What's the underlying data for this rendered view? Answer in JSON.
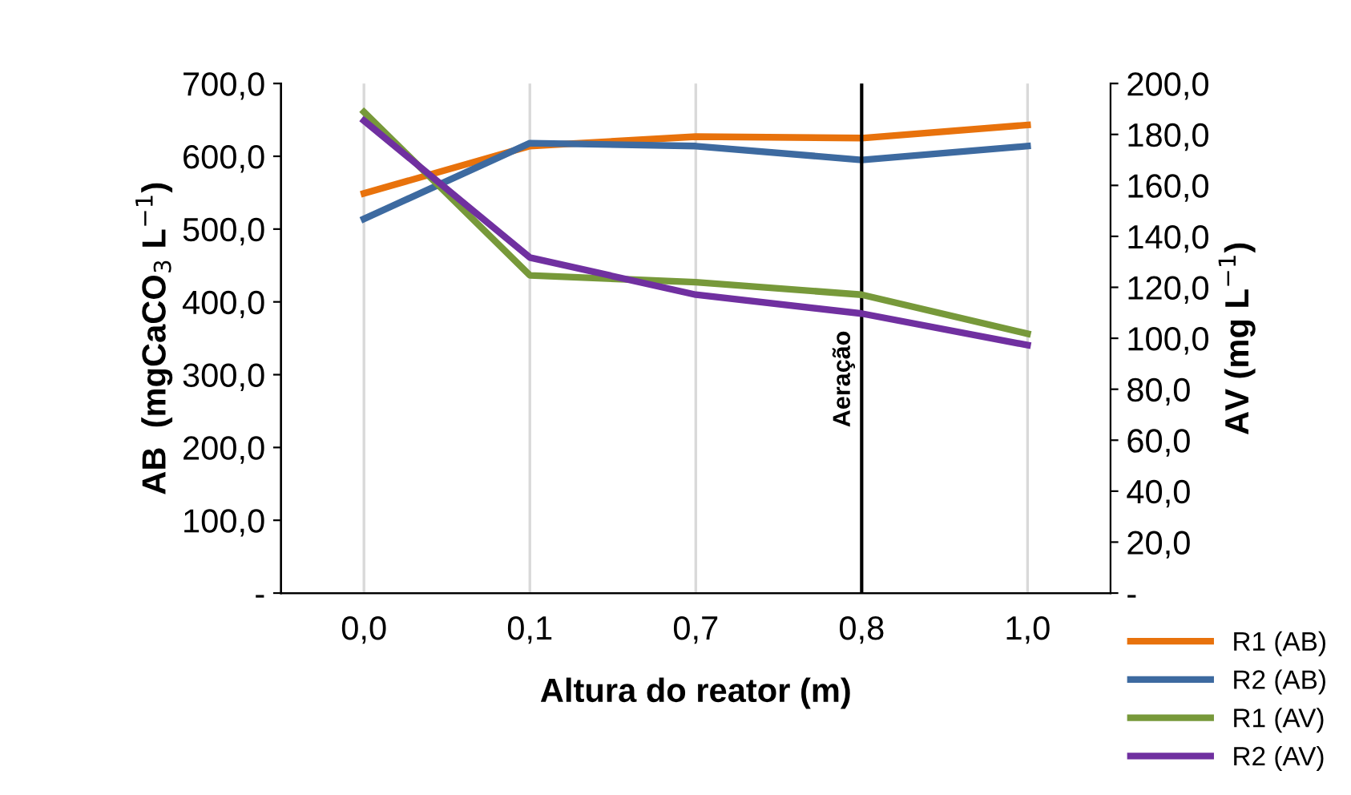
{
  "chart_data": {
    "type": "line",
    "xlabel": "Altura do reator (m)",
    "ylabel": "AB  (mgCaCO$_{3}$ L$^{−1}$)",
    "y2label": "AV (mg L$^{−1}$)",
    "categories": [
      "0,0",
      "0,1",
      "0,7",
      "0,8",
      "1,0"
    ],
    "series": [
      {
        "name": "R1 (AB)",
        "color": "#e8720c",
        "values": [
          549,
          614,
          627,
          625,
          643
        ]
      },
      {
        "name": "R2 (AB)",
        "color": "#3d6aa0",
        "values": [
          514,
          618,
          614,
          595,
          614
        ]
      },
      {
        "name": "R1 (AV)",
        "color": "#77993a",
        "axis": "y2",
        "values": [
          188.8,
          124.7,
          122.0,
          117.1,
          101.8
        ]
      },
      {
        "name": "R2 (AV)",
        "color": "#7030a0",
        "axis": "y2",
        "values": [
          185.4,
          131.7,
          117.1,
          109.7,
          97.3
        ]
      }
    ],
    "ylim": [
      0,
      700
    ],
    "yticks": [
      {
        "value": 0,
        "label": "-"
      },
      {
        "value": 100,
        "label": "100,0"
      },
      {
        "value": 200,
        "label": "200,0"
      },
      {
        "value": 300,
        "label": "300,0"
      },
      {
        "value": 400,
        "label": "400,0"
      },
      {
        "value": 500,
        "label": "500,0"
      },
      {
        "value": 600,
        "label": "600,0"
      },
      {
        "value": 700,
        "label": "700,0"
      }
    ],
    "y2lim": [
      0,
      200
    ],
    "y2ticks": [
      {
        "value": 0,
        "label": "-"
      },
      {
        "value": 20,
        "label": "20,0"
      },
      {
        "value": 40,
        "label": "40,0"
      },
      {
        "value": 60,
        "label": "60,0"
      },
      {
        "value": 80,
        "label": "80,0"
      },
      {
        "value": 100,
        "label": "100,0"
      },
      {
        "value": 120,
        "label": "120,0"
      },
      {
        "value": 140,
        "label": "140,0"
      },
      {
        "value": 160,
        "label": "160,0"
      },
      {
        "value": 180,
        "label": "180,0"
      },
      {
        "value": 200,
        "label": "200,0"
      }
    ],
    "ref_lines": [
      {
        "axis": "x",
        "value": "0,8",
        "label": "Aeração",
        "color": "#000000"
      }
    ],
    "grid": "x",
    "legend": "bottom right",
    "line_style": "solid",
    "marker": "none"
  }
}
